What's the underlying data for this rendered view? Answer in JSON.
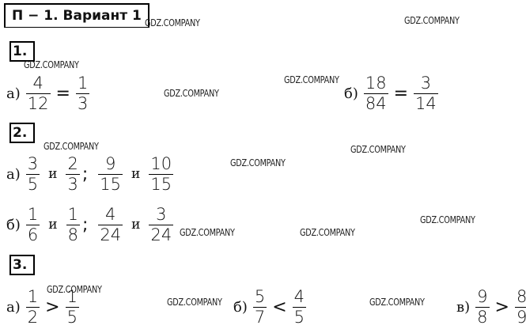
{
  "header": {
    "title": "П − 1. Вариант 1"
  },
  "watermark": "GDZ.COMPANY",
  "sections": [
    {
      "number": "1.",
      "rows": [
        [
          {
            "label": "а)",
            "parts": [
              {
                "num": 4,
                "den": 12
              },
              "=",
              {
                "num": 1,
                "den": 3
              }
            ]
          },
          {
            "label": "б)",
            "parts": [
              {
                "num": 18,
                "den": 84
              },
              "=",
              {
                "num": 3,
                "den": 14
              }
            ]
          }
        ]
      ]
    },
    {
      "number": "2.",
      "rows": [
        [
          {
            "label": "а)",
            "parts": [
              {
                "num": 3,
                "den": 5
              },
              "и",
              {
                "num": 2,
                "den": 3
              },
              ";",
              {
                "num": 9,
                "den": 15
              },
              "и",
              {
                "num": 10,
                "den": 15
              }
            ]
          }
        ],
        [
          {
            "label": "б)",
            "parts": [
              {
                "num": 1,
                "den": 6
              },
              "и",
              {
                "num": 1,
                "den": 8
              },
              ";",
              {
                "num": 4,
                "den": 24
              },
              "и",
              {
                "num": 3,
                "den": 24
              }
            ]
          }
        ]
      ]
    },
    {
      "number": "3.",
      "rows": [
        [
          {
            "label": "а)",
            "parts": [
              {
                "num": 1,
                "den": 2
              },
              ">",
              {
                "num": 1,
                "den": 5
              }
            ]
          },
          {
            "label": "б)",
            "parts": [
              {
                "num": 5,
                "den": 7
              },
              "<",
              {
                "num": 4,
                "den": 5
              }
            ]
          },
          {
            "label": "в)",
            "parts": [
              {
                "num": 9,
                "den": 8
              },
              ">",
              {
                "num": 8,
                "den": 9
              }
            ]
          }
        ]
      ]
    }
  ]
}
